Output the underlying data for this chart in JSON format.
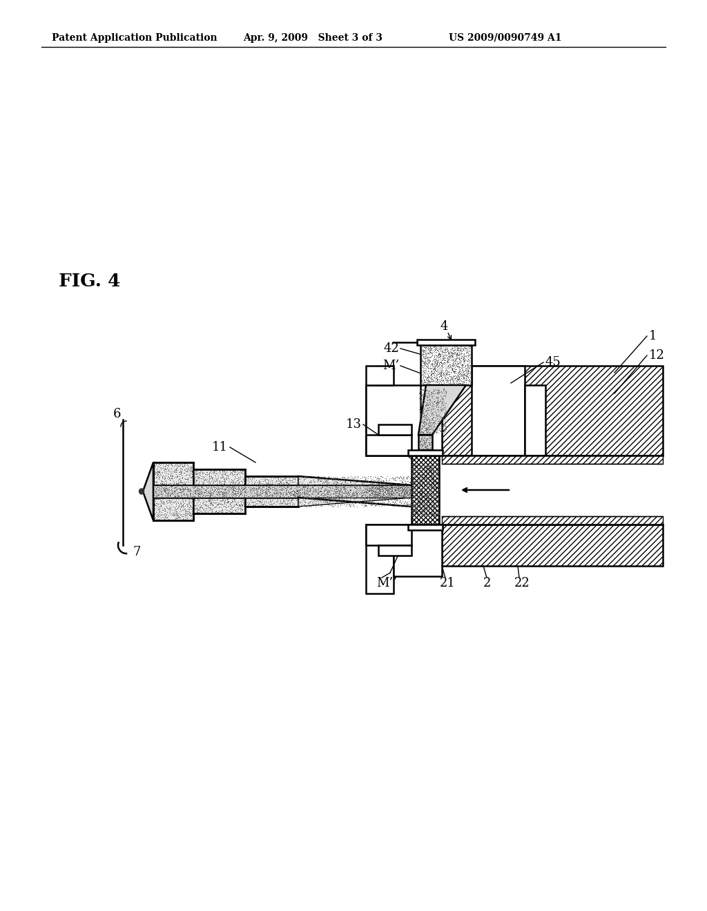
{
  "bg_color": "#ffffff",
  "header_left": "Patent Application Publication",
  "header_mid": "Apr. 9, 2009   Sheet 3 of 3",
  "header_right": "US 2009/0090749 A1",
  "fig_label": "FIG. 4",
  "lw_main": 1.8,
  "lw_thin": 1.0,
  "lw_thick": 2.5
}
